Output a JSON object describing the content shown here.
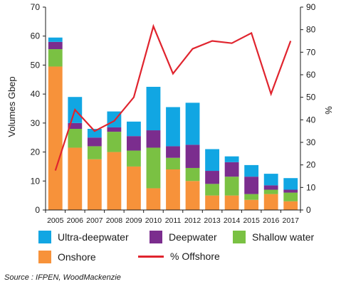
{
  "chart_data": {
    "type": "bar",
    "stacked": true,
    "categories": [
      "2005",
      "2006",
      "2007",
      "2008",
      "2009",
      "2010",
      "2011",
      "2012",
      "2013",
      "2014",
      "2015",
      "2016",
      "2017"
    ],
    "series": [
      {
        "name": "Onshore",
        "color": "#f7923a",
        "values": [
          49.5,
          21.5,
          17.5,
          20,
          15,
          7.5,
          14,
          10,
          5,
          5,
          3.5,
          5.5,
          3
        ]
      },
      {
        "name": "Shallow water",
        "color": "#7ac143",
        "values": [
          6,
          6.5,
          4.5,
          7,
          5.5,
          14,
          4,
          4.5,
          4,
          6.5,
          2,
          1.5,
          3
        ]
      },
      {
        "name": "Deepwater",
        "color": "#7b2d8e",
        "values": [
          2.5,
          2,
          3,
          1.5,
          5,
          6,
          4,
          8,
          4.5,
          5,
          6,
          1.5,
          1
        ]
      },
      {
        "name": "Ultra-deepwater",
        "color": "#11a6e3",
        "values": [
          1.5,
          9,
          3,
          5.5,
          5,
          15,
          13.5,
          14.5,
          7.5,
          2,
          4,
          4,
          4
        ]
      }
    ],
    "line_series": {
      "name": "% Offshore",
      "color": "#e0242e",
      "axis": "right",
      "values": [
        17.5,
        44.5,
        35,
        39.5,
        50,
        81.5,
        60.5,
        71.5,
        75,
        74,
        78.5,
        51.5,
        75
      ]
    },
    "ylabel": "Volumes Gbep",
    "y2label": "%",
    "ylim": [
      0,
      70
    ],
    "y2lim": [
      0,
      90
    ],
    "yticks": [
      0,
      10,
      20,
      30,
      40,
      50,
      60,
      70
    ],
    "y2ticks": [
      0,
      10,
      20,
      30,
      40,
      50,
      60,
      70,
      80,
      90
    ],
    "grid": false,
    "legend_position": "bottom"
  },
  "legend": {
    "ultra": "Ultra-deepwater",
    "deep": "Deepwater",
    "shallow": "Shallow water",
    "onshore": "Onshore",
    "offshore": "% Offshore"
  },
  "source": "Source : IFPEN, WoodMackenzie"
}
